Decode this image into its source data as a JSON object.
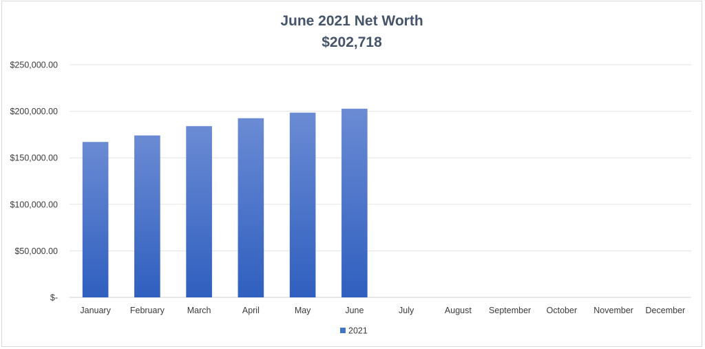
{
  "chart_data": {
    "type": "bar",
    "title": "June 2021 Net Worth",
    "subtitle": "$202,718",
    "categories": [
      "January",
      "February",
      "March",
      "April",
      "May",
      "June",
      "July",
      "August",
      "September",
      "October",
      "November",
      "December"
    ],
    "series": [
      {
        "name": "2021",
        "values": [
          167000,
          174000,
          184000,
          192500,
          198500,
          202718,
          null,
          null,
          null,
          null,
          null,
          null
        ]
      }
    ],
    "ylim": [
      0,
      250000
    ],
    "yticks": [
      0,
      50000,
      100000,
      150000,
      200000,
      250000
    ],
    "ytick_labels": [
      "$-",
      "$50,000.00",
      "$100,000.00",
      "$150,000.00",
      "$200,000.00",
      "$250,000.00"
    ],
    "xlabel": "",
    "ylabel": "",
    "grid": true,
    "legend": "bottom",
    "colors": {
      "bar_top": "#6b8bd4",
      "bar_bottom": "#2f5fbf",
      "legend_swatch": "#4472c4"
    }
  }
}
